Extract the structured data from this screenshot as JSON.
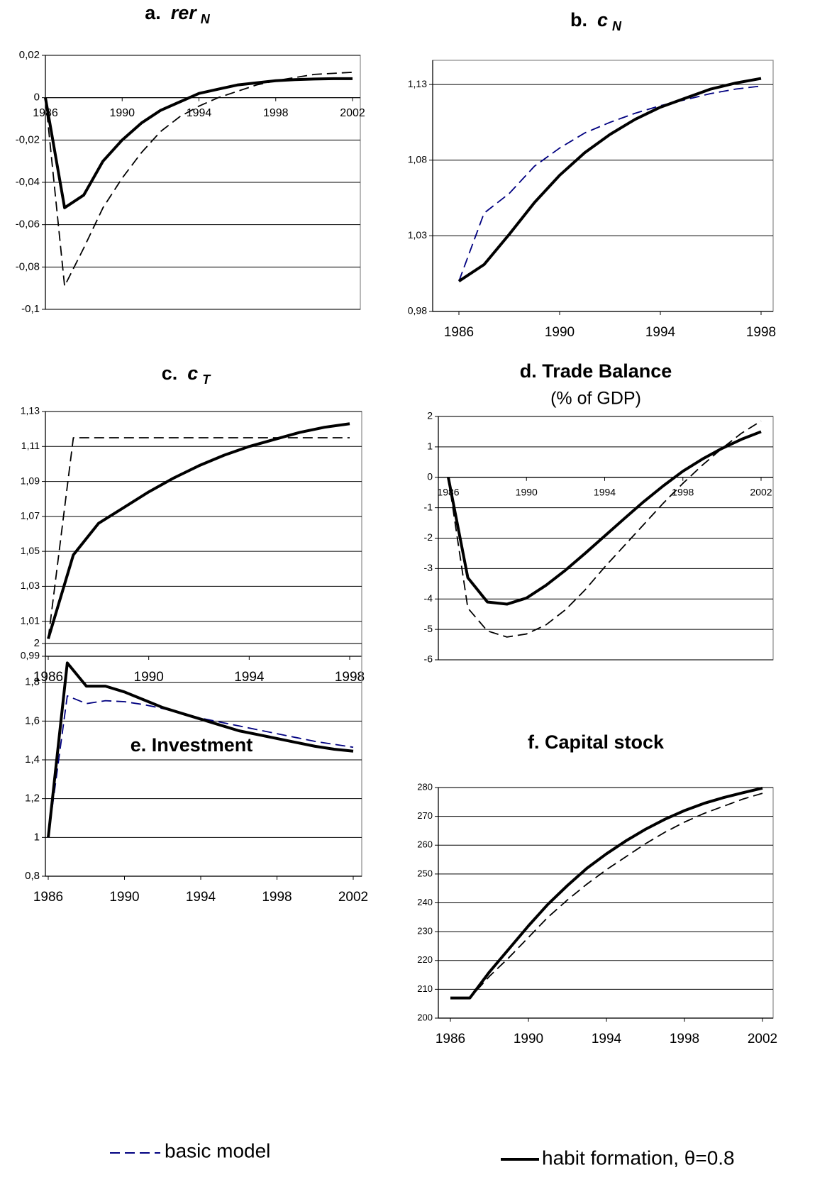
{
  "chart_data": [
    {
      "type": "line",
      "title": "a.",
      "title_var": "rer",
      "title_sub": "N",
      "x": [
        1986,
        1987,
        1988,
        1989,
        1990,
        1991,
        1992,
        1993,
        1994,
        1995,
        1996,
        1997,
        1998,
        1999,
        2000,
        2001,
        2002
      ],
      "xlim": [
        1986,
        2002
      ],
      "xticks": [
        1986,
        1990,
        1994,
        1998,
        2002
      ],
      "ylim": [
        -0.1,
        0.02
      ],
      "yticks": [
        {
          "value": -0.1,
          "label": "-0,1"
        },
        {
          "value": -0.08,
          "label": "-0,08"
        },
        {
          "value": -0.06,
          "label": "-0,06"
        },
        {
          "value": -0.04,
          "label": "-0,04"
        },
        {
          "value": -0.02,
          "label": "-0,02"
        },
        0,
        {
          "value": 0.02,
          "label": "0,02"
        }
      ],
      "grid": true,
      "series": [
        {
          "color": "#000000",
          "dash": true,
          "values": [
            0,
            -0.089,
            -0.071,
            -0.052,
            -0.038,
            -0.026,
            -0.016,
            -0.009,
            -0.004,
            0.0,
            0.003,
            0.006,
            0.008,
            0.0095,
            0.011,
            0.0115,
            0.012
          ]
        },
        {
          "color": "#000000",
          "dash": false,
          "values": [
            0,
            -0.052,
            -0.046,
            -0.03,
            -0.02,
            -0.012,
            -0.006,
            -0.002,
            0.002,
            0.004,
            0.006,
            0.007,
            0.008,
            0.0085,
            0.0088,
            0.009,
            0.009
          ]
        }
      ]
    },
    {
      "type": "line",
      "title": "b.",
      "title_var": "c",
      "title_sub": "N",
      "x": [
        1986,
        1987,
        1988,
        1989,
        1990,
        1991,
        1992,
        1993,
        1994,
        1995,
        1996,
        1997,
        1998
      ],
      "xlim": [
        1986,
        1998
      ],
      "xticks": [
        1986,
        1990,
        1994,
        1998
      ],
      "ylim": [
        0.98,
        1.146
      ],
      "yticks": [
        {
          "value": 0.98,
          "label": "0,98"
        },
        {
          "value": 1.03,
          "label": "1,03"
        },
        {
          "value": 1.08,
          "label": "1,08"
        },
        {
          "value": 1.13,
          "label": "1,13"
        }
      ],
      "grid": true,
      "series": [
        {
          "color": "#000080",
          "dash": true,
          "values": [
            1.0,
            1.045,
            1.058,
            1.076,
            1.088,
            1.098,
            1.105,
            1.111,
            1.116,
            1.12,
            1.124,
            1.127,
            1.129
          ]
        },
        {
          "color": "#000000",
          "dash": false,
          "values": [
            1.0,
            1.011,
            1.031,
            1.052,
            1.07,
            1.085,
            1.097,
            1.107,
            1.115,
            1.121,
            1.127,
            1.131,
            1.134
          ]
        }
      ]
    },
    {
      "type": "line",
      "title": "c.",
      "title_var": "c",
      "title_sub": "T",
      "x": [
        1986,
        1987,
        1988,
        1989,
        1990,
        1991,
        1992,
        1993,
        1994,
        1995,
        1996,
        1997,
        1998
      ],
      "xlim": [
        1986,
        1998
      ],
      "xticks": [
        1986,
        1990,
        1994,
        1998
      ],
      "ylim": [
        0.99,
        1.13
      ],
      "yticks": [
        {
          "value": 0.99,
          "label": "0,99"
        },
        {
          "value": 1.01,
          "label": "1,01"
        },
        {
          "value": 1.03,
          "label": "1,03"
        },
        {
          "value": 1.05,
          "label": "1,05"
        },
        {
          "value": 1.07,
          "label": "1,07"
        },
        {
          "value": 1.09,
          "label": "1,09"
        },
        {
          "value": 1.11,
          "label": "1,11"
        },
        {
          "value": 1.13,
          "label": "1,13"
        }
      ],
      "grid": true,
      "series": [
        {
          "color": "#000000",
          "dash": true,
          "values": [
            1.0,
            1.115,
            1.115,
            1.115,
            1.115,
            1.115,
            1.115,
            1.115,
            1.115,
            1.115,
            1.115,
            1.115,
            1.115
          ]
        },
        {
          "color": "#000000",
          "dash": false,
          "values": [
            1.0,
            1.048,
            1.066,
            1.075,
            1.084,
            1.092,
            1.099,
            1.105,
            1.11,
            1.114,
            1.118,
            1.121,
            1.123
          ]
        }
      ]
    },
    {
      "type": "line",
      "title": "d. Trade Balance",
      "subtitle": "(% of GDP)",
      "x": [
        1986,
        1987,
        1988,
        1989,
        1990,
        1991,
        1992,
        1993,
        1994,
        1995,
        1996,
        1997,
        1998,
        1999,
        2000,
        2001,
        2002
      ],
      "xlim": [
        1986,
        2002
      ],
      "xticks": [
        1986,
        1990,
        1994,
        1998,
        2002
      ],
      "ylim": [
        -6,
        2
      ],
      "yticks": [
        -6,
        -5,
        -4,
        -3,
        -2,
        -1,
        0,
        1,
        2
      ],
      "grid": true,
      "series": [
        {
          "color": "#000000",
          "dash": true,
          "values": [
            0,
            -4.3,
            -5.05,
            -5.25,
            -5.15,
            -4.85,
            -4.35,
            -3.7,
            -2.95,
            -2.25,
            -1.55,
            -0.85,
            -0.2,
            0.4,
            0.95,
            1.45,
            1.85
          ]
        },
        {
          "color": "#000000",
          "dash": false,
          "values": [
            0,
            -3.3,
            -4.1,
            -4.17,
            -3.97,
            -3.55,
            -3.05,
            -2.5,
            -1.93,
            -1.36,
            -0.8,
            -0.28,
            0.2,
            0.6,
            0.95,
            1.25,
            1.5
          ]
        }
      ]
    },
    {
      "type": "line",
      "title": "e. Investment",
      "x": [
        1986,
        1987,
        1988,
        1989,
        1990,
        1991,
        1992,
        1993,
        1994,
        1995,
        1996,
        1997,
        1998,
        1999,
        2000,
        2001,
        2002
      ],
      "xlim": [
        1986,
        2002
      ],
      "xticks": [
        1986,
        1990,
        1994,
        1998,
        2002
      ],
      "ylim": [
        0.8,
        2
      ],
      "yticks": [
        {
          "value": 0.8,
          "label": "0,8"
        },
        1,
        {
          "value": 1.2,
          "label": "1,2"
        },
        {
          "value": 1.4,
          "label": "1,4"
        },
        {
          "value": 1.6,
          "label": "1,6"
        },
        {
          "value": 1.8,
          "label": "1,8"
        },
        2
      ],
      "grid": true,
      "series": [
        {
          "color": "#000080",
          "dash": true,
          "values": [
            1.0,
            1.73,
            1.69,
            1.705,
            1.7,
            1.685,
            1.665,
            1.64,
            1.615,
            1.595,
            1.575,
            1.555,
            1.535,
            1.515,
            1.495,
            1.48,
            1.465
          ]
        },
        {
          "color": "#000000",
          "dash": false,
          "values": [
            1.0,
            1.9,
            1.78,
            1.78,
            1.75,
            1.71,
            1.67,
            1.64,
            1.61,
            1.58,
            1.55,
            1.53,
            1.51,
            1.49,
            1.47,
            1.455,
            1.445
          ]
        }
      ]
    },
    {
      "type": "line",
      "title": "f. Capital stock",
      "x": [
        1986,
        1987,
        1988,
        1989,
        1990,
        1991,
        1992,
        1993,
        1994,
        1995,
        1996,
        1997,
        1998,
        1999,
        2000,
        2001,
        2002
      ],
      "xlim": [
        1986,
        2002
      ],
      "xticks": [
        1986,
        1990,
        1994,
        1998,
        2002
      ],
      "ylim": [
        200,
        280
      ],
      "yticks": [
        200,
        210,
        220,
        230,
        240,
        250,
        260,
        270,
        280
      ],
      "grid": true,
      "series": [
        {
          "color": "#000000",
          "dash": true,
          "values": [
            207,
            207,
            214.5,
            221,
            228,
            235,
            241,
            246.5,
            251.5,
            256,
            260.5,
            264.5,
            268,
            271,
            273.5,
            276,
            278
          ]
        },
        {
          "color": "#000000",
          "dash": false,
          "values": [
            207,
            207,
            216,
            224,
            232,
            239.5,
            246,
            252,
            257,
            261.5,
            265.5,
            269,
            272,
            274.5,
            276.5,
            278.2,
            279.8
          ]
        }
      ]
    }
  ],
  "legend": {
    "entries": [
      {
        "name": "basic model",
        "color": "#000080",
        "dash": true
      },
      {
        "name": "habit formation, θ=0.8",
        "color": "#000000",
        "dash": false
      }
    ]
  }
}
